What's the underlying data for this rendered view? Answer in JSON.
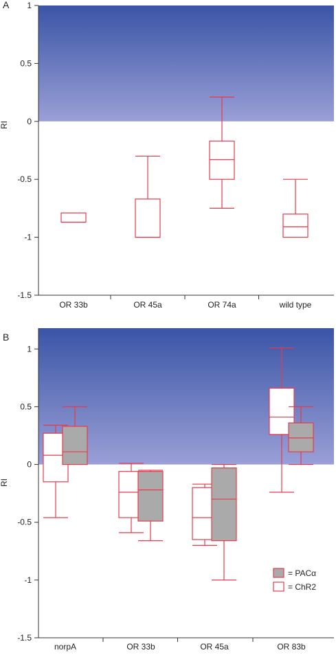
{
  "colors": {
    "box_stroke": "#e8394a",
    "pac_fill": "#aaaaaa",
    "chr_fill": "#ffffff",
    "gradient_top": "#3a55a6",
    "gradient_bottom": "#9a9fd6",
    "axis": "#333333"
  },
  "chart_data": [
    {
      "panel": "A",
      "type": "box",
      "ylabel": "RI",
      "ylim": [
        -1.5,
        1
      ],
      "yticks": [
        1,
        0.5,
        0,
        -0.5,
        -1,
        -1.5
      ],
      "ytick_labels": [
        "1",
        "0.5",
        "0",
        "-0.5",
        "-1",
        "-1.5"
      ],
      "categories": [
        "OR 33b",
        "OR 45a",
        "OR 74a",
        "wild type"
      ],
      "shaded_region": [
        0,
        1
      ],
      "series": [
        {
          "fill": "white",
          "boxes": [
            {
              "category": "OR 33b",
              "min": -0.87,
              "q1": -0.87,
              "median": -0.87,
              "q3": -0.79,
              "max": -0.79
            },
            {
              "category": "OR 45a",
              "min": -1.0,
              "q1": -1.0,
              "median": -1.0,
              "q3": -0.67,
              "max": -0.3
            },
            {
              "category": "OR 74a",
              "min": -0.75,
              "q1": -0.5,
              "median": -0.33,
              "q3": -0.17,
              "max": 0.21
            },
            {
              "category": "wild type",
              "min": -1.0,
              "q1": -1.0,
              "median": -0.91,
              "q3": -0.8,
              "max": -0.5
            }
          ]
        }
      ]
    },
    {
      "panel": "B",
      "type": "box",
      "ylabel": "RI",
      "ylim": [
        -1.5,
        1.18
      ],
      "yticks": [
        1,
        0.5,
        0,
        -0.5,
        -1,
        -1.5
      ],
      "ytick_labels": [
        "1",
        "0.5",
        "0",
        "-0.5",
        "-1",
        "-1.5"
      ],
      "categories": [
        "norpA",
        "OR 33b",
        "OR 45a",
        "OR 83b"
      ],
      "shaded_region": [
        0,
        1.18
      ],
      "series": [
        {
          "name": "ChR2",
          "fill": "white",
          "boxes": [
            {
              "category": "norpA",
              "min": -0.46,
              "q1": -0.15,
              "median": 0.08,
              "q3": 0.27,
              "max": 0.34
            },
            {
              "category": "OR 33b",
              "min": -0.59,
              "q1": -0.46,
              "median": -0.24,
              "q3": -0.06,
              "max": 0.01
            },
            {
              "category": "OR 45a",
              "min": -0.7,
              "q1": -0.65,
              "median": -0.46,
              "q3": -0.2,
              "max": -0.17
            },
            {
              "category": "OR 83b",
              "min": -0.24,
              "q1": 0.26,
              "median": 0.41,
              "q3": 0.66,
              "max": 1.01
            }
          ]
        },
        {
          "name": "PACα",
          "fill": "gray",
          "boxes": [
            {
              "category": "norpA",
              "min": 0.0,
              "q1": 0.0,
              "median": 0.11,
              "q3": 0.33,
              "max": 0.5
            },
            {
              "category": "OR 33b",
              "min": -0.66,
              "q1": -0.49,
              "median": -0.22,
              "q3": -0.06,
              "max": -0.05
            },
            {
              "category": "OR 45a",
              "min": -1.0,
              "q1": -0.66,
              "median": -0.3,
              "q3": -0.03,
              "max": 0.0
            },
            {
              "category": "OR 83b",
              "min": 0.0,
              "q1": 0.11,
              "median": 0.23,
              "q3": 0.36,
              "max": 0.5
            }
          ]
        }
      ],
      "legend": {
        "placement": "bottom-right",
        "items": [
          {
            "label": "= PACα",
            "fill": "gray"
          },
          {
            "label": "= ChR2",
            "fill": "white"
          }
        ]
      }
    }
  ]
}
